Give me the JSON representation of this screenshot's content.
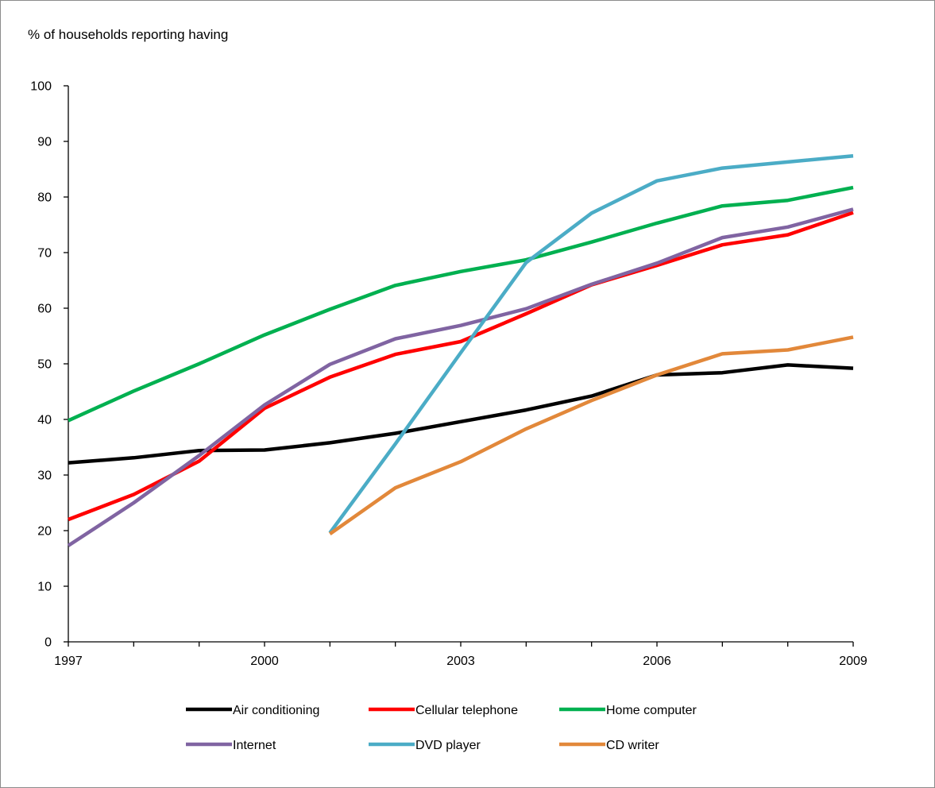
{
  "chart_data": {
    "type": "line",
    "ylabel": "% of households reporting having",
    "xlabel": "",
    "title": "",
    "x": [
      1997,
      1998,
      1999,
      2000,
      2001,
      2002,
      2003,
      2004,
      2005,
      2006,
      2007,
      2008,
      2009
    ],
    "x_tick_labels": [
      "1997",
      "2000",
      "2003",
      "2006",
      "2009"
    ],
    "x_tick_values": [
      1997,
      2000,
      2003,
      2006,
      2009
    ],
    "y_ticks": [
      0,
      10,
      20,
      30,
      40,
      50,
      60,
      70,
      80,
      90,
      100
    ],
    "ylim": [
      0,
      100
    ],
    "xlim": [
      1997,
      2009
    ],
    "grid": false,
    "legend_position": "bottom",
    "series": [
      {
        "name": "Air conditioning",
        "color": "#000000",
        "values": [
          32.2,
          33.1,
          34.4,
          34.5,
          35.8,
          37.5,
          39.6,
          41.7,
          44.2,
          48.0,
          48.4,
          49.8,
          49.2
        ]
      },
      {
        "name": "Cellular telephone",
        "color": "#ff0000",
        "values": [
          22.0,
          26.5,
          32.5,
          42.0,
          47.6,
          51.7,
          54.0,
          59.0,
          64.2,
          67.7,
          71.4,
          73.2,
          77.2
        ]
      },
      {
        "name": "Home computer",
        "color": "#00b050",
        "values": [
          39.8,
          45.1,
          50.0,
          55.2,
          59.8,
          64.1,
          66.6,
          68.7,
          71.9,
          75.3,
          78.4,
          79.4,
          81.7
        ]
      },
      {
        "name": "Internet",
        "color": "#8064a2",
        "values": [
          17.3,
          25.0,
          33.5,
          42.6,
          49.9,
          54.5,
          56.9,
          59.9,
          64.3,
          68.1,
          72.7,
          74.6,
          77.8
        ]
      },
      {
        "name": "DVD player",
        "color": "#4bacc6",
        "values": [
          null,
          null,
          null,
          null,
          19.6,
          35.6,
          52.0,
          68.2,
          77.1,
          82.9,
          85.2,
          86.3,
          87.4
        ]
      },
      {
        "name": "CD writer",
        "color": "#e2883a",
        "values": [
          null,
          null,
          null,
          null,
          19.4,
          27.7,
          32.4,
          38.3,
          43.4,
          48.0,
          51.8,
          52.5,
          54.8
        ]
      }
    ]
  }
}
